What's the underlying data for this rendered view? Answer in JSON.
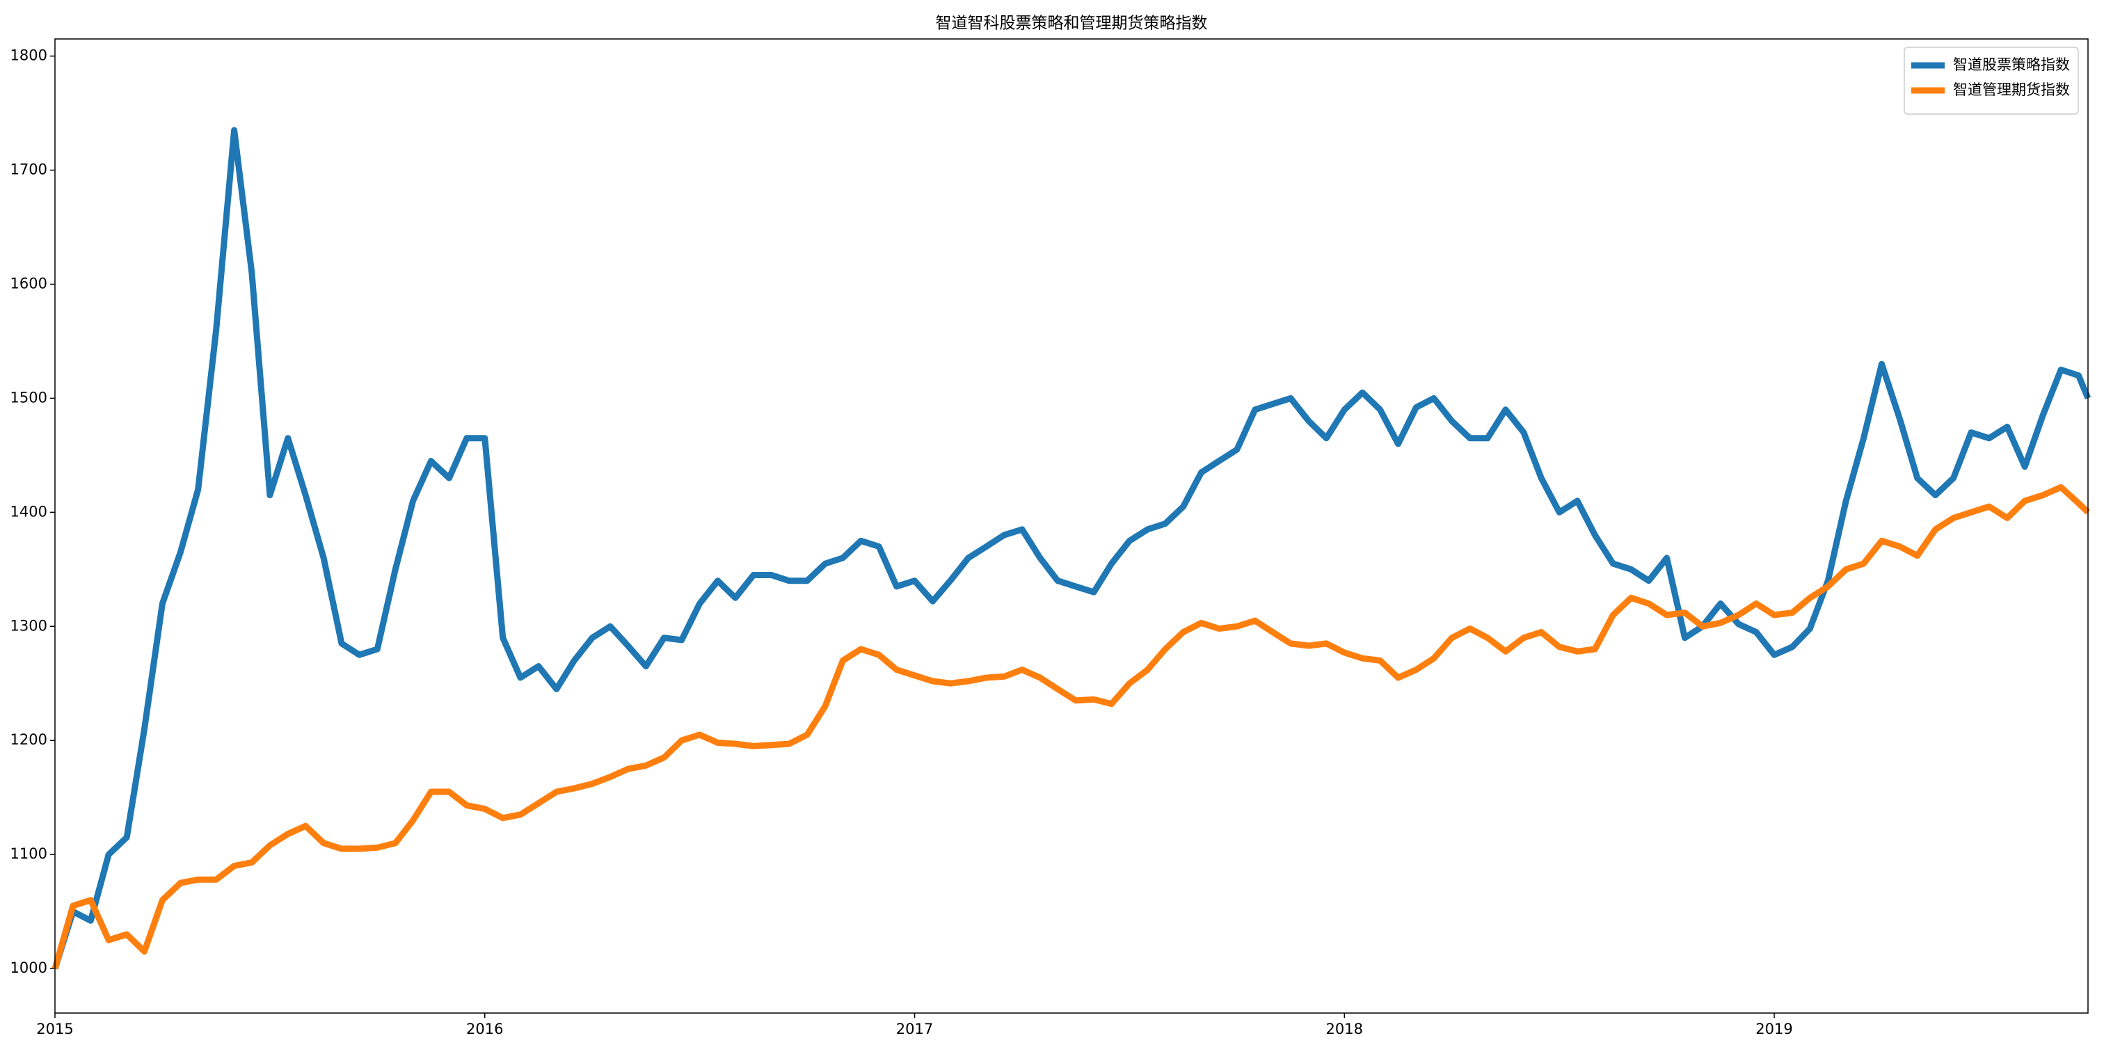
{
  "chart_data": {
    "type": "line",
    "title": "智道智科股票策略和管理期货策略指数",
    "x": [
      2015,
      2015.042,
      2015.083,
      2015.125,
      2015.167,
      2015.208,
      2015.25,
      2015.292,
      2015.333,
      2015.375,
      2015.417,
      2015.458,
      2015.5,
      2015.542,
      2015.583,
      2015.625,
      2015.667,
      2015.708,
      2015.75,
      2015.792,
      2015.833,
      2015.875,
      2015.917,
      2015.958,
      2016,
      2016.042,
      2016.083,
      2016.125,
      2016.167,
      2016.208,
      2016.25,
      2016.292,
      2016.333,
      2016.375,
      2016.417,
      2016.458,
      2016.5,
      2016.542,
      2016.583,
      2016.625,
      2016.667,
      2016.708,
      2016.75,
      2016.792,
      2016.833,
      2016.875,
      2016.917,
      2016.958,
      2017,
      2017.042,
      2017.083,
      2017.125,
      2017.167,
      2017.208,
      2017.25,
      2017.292,
      2017.333,
      2017.375,
      2017.417,
      2017.458,
      2017.5,
      2017.542,
      2017.583,
      2017.625,
      2017.667,
      2017.708,
      2017.75,
      2017.792,
      2017.833,
      2017.875,
      2017.917,
      2017.958,
      2018,
      2018.042,
      2018.083,
      2018.125,
      2018.167,
      2018.208,
      2018.25,
      2018.292,
      2018.333,
      2018.375,
      2018.417,
      2018.458,
      2018.5,
      2018.542,
      2018.583,
      2018.625,
      2018.667,
      2018.708,
      2018.75,
      2018.792,
      2018.833,
      2018.875,
      2018.917,
      2018.958,
      2019,
      2019.042,
      2019.083,
      2019.125,
      2019.167,
      2019.208,
      2019.25,
      2019.292,
      2019.333,
      2019.375,
      2019.417,
      2019.458,
      2019.5,
      2019.542,
      2019.583,
      2019.625,
      2019.667,
      2019.708,
      2019.73
    ],
    "series": [
      {
        "name": "智道股票策略指数",
        "color": "#1f77b4",
        "values": [
          1000,
          1050,
          1042,
          1100,
          1115,
          1210,
          1320,
          1365,
          1420,
          1560,
          1735,
          1610,
          1415,
          1465,
          1415,
          1360,
          1285,
          1275,
          1280,
          1350,
          1410,
          1445,
          1430,
          1465,
          1465,
          1290,
          1255,
          1265,
          1245,
          1270,
          1290,
          1300,
          1283,
          1265,
          1290,
          1288,
          1320,
          1340,
          1325,
          1345,
          1345,
          1340,
          1340,
          1355,
          1360,
          1375,
          1370,
          1335,
          1340,
          1322,
          1340,
          1360,
          1370,
          1380,
          1385,
          1360,
          1340,
          1335,
          1330,
          1355,
          1375,
          1385,
          1390,
          1405,
          1435,
          1445,
          1455,
          1490,
          1495,
          1500,
          1480,
          1465,
          1490,
          1505,
          1490,
          1460,
          1492,
          1500,
          1480,
          1465,
          1465,
          1490,
          1470,
          1430,
          1400,
          1410,
          1380,
          1355,
          1350,
          1340,
          1360,
          1290,
          1300,
          1320,
          1302,
          1295,
          1275,
          1282,
          1298,
          1340,
          1410,
          1465,
          1530,
          1482,
          1430,
          1415,
          1430,
          1470,
          1465,
          1475,
          1440,
          1485,
          1525,
          1520,
          1500
        ]
      },
      {
        "name": "智道管理期货指数",
        "color": "#ff7f0e",
        "values": [
          1000,
          1055,
          1060,
          1025,
          1030,
          1015,
          1060,
          1075,
          1078,
          1078,
          1090,
          1093,
          1108,
          1118,
          1125,
          1110,
          1105,
          1105,
          1106,
          1110,
          1130,
          1155,
          1155,
          1143,
          1140,
          1132,
          1135,
          1145,
          1155,
          1158,
          1162,
          1168,
          1175,
          1178,
          1185,
          1200,
          1205,
          1198,
          1197,
          1195,
          1196,
          1197,
          1205,
          1230,
          1270,
          1280,
          1275,
          1262,
          1257,
          1252,
          1250,
          1252,
          1255,
          1256,
          1262,
          1255,
          1245,
          1235,
          1236,
          1232,
          1250,
          1262,
          1280,
          1295,
          1303,
          1298,
          1300,
          1305,
          1295,
          1285,
          1283,
          1285,
          1277,
          1272,
          1270,
          1255,
          1262,
          1272,
          1290,
          1298,
          1290,
          1278,
          1290,
          1295,
          1282,
          1278,
          1280,
          1310,
          1325,
          1320,
          1310,
          1312,
          1300,
          1303,
          1310,
          1320,
          1310,
          1312,
          1325,
          1335,
          1350,
          1355,
          1375,
          1370,
          1362,
          1385,
          1395,
          1400,
          1405,
          1395,
          1410,
          1415,
          1422,
          1408,
          1400
        ]
      }
    ],
    "xlim": [
      2015,
      2019.73
    ],
    "xticks": [
      2015,
      2016,
      2017,
      2018,
      2019
    ],
    "ylim": [
      961,
      1815
    ],
    "yticks": [
      1000,
      1100,
      1200,
      1300,
      1400,
      1500,
      1600,
      1700,
      1800
    ],
    "legend": "upper right"
  }
}
